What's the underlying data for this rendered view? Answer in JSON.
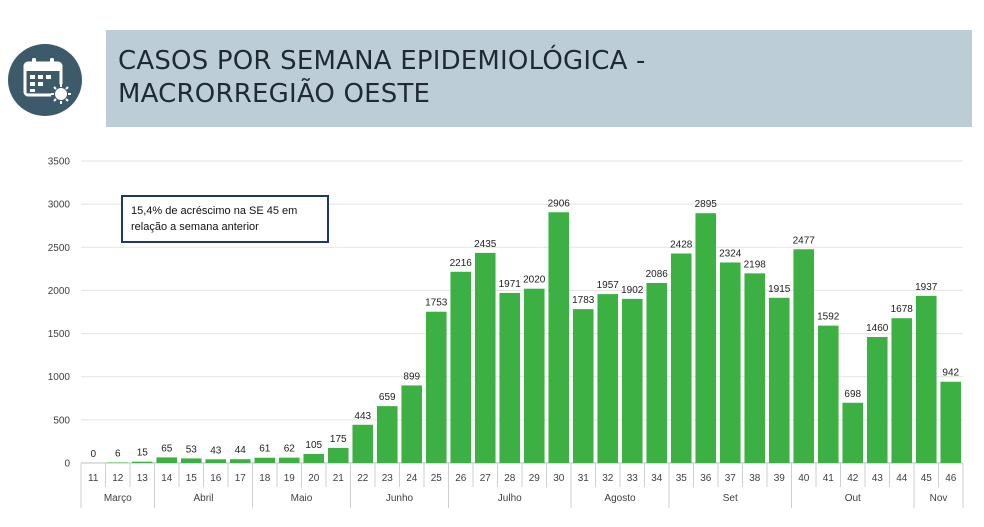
{
  "header": {
    "title": "CASOS POR SEMANA EPIDEMIOLÓGICA -\nMACRORREGIÃO OESTE",
    "icon": "calendar-virus-icon",
    "icon_bg": "#3d5a6b",
    "bg": "#bccdd7"
  },
  "annotation": {
    "text": "15,4% de acréscimo na SE 45 em relação a semana anterior"
  },
  "chart_data": {
    "type": "bar",
    "title": "",
    "xlabel": "",
    "ylabel": "",
    "ylim": [
      0,
      3500
    ],
    "yticks": [
      0,
      500,
      1000,
      1500,
      2000,
      2500,
      3000,
      3500
    ],
    "grid": true,
    "bar_color": "#3cb043",
    "categories": [
      "11",
      "12",
      "13",
      "14",
      "15",
      "16",
      "17",
      "18",
      "19",
      "20",
      "21",
      "22",
      "23",
      "24",
      "25",
      "26",
      "27",
      "28",
      "29",
      "30",
      "31",
      "32",
      "33",
      "34",
      "35",
      "36",
      "37",
      "38",
      "39",
      "40",
      "41",
      "42",
      "43",
      "44",
      "45",
      "46"
    ],
    "values": [
      0,
      6,
      15,
      65,
      53,
      43,
      44,
      61,
      62,
      105,
      175,
      443,
      659,
      899,
      1753,
      2216,
      2435,
      1971,
      2020,
      2906,
      1783,
      1957,
      1902,
      2086,
      2428,
      2895,
      2324,
      2198,
      1915,
      2477,
      1592,
      698,
      1460,
      1678,
      1937,
      942
    ],
    "months": [
      {
        "label": "Março",
        "start": 0,
        "end": 2
      },
      {
        "label": "Abril",
        "start": 3,
        "end": 6
      },
      {
        "label": "Maio",
        "start": 7,
        "end": 10
      },
      {
        "label": "Junho",
        "start": 11,
        "end": 14
      },
      {
        "label": "Julho",
        "start": 15,
        "end": 19
      },
      {
        "label": "Agosto",
        "start": 20,
        "end": 23
      },
      {
        "label": "Set",
        "start": 24,
        "end": 28
      },
      {
        "label": "Out",
        "start": 29,
        "end": 33
      },
      {
        "label": "Nov",
        "start": 34,
        "end": 35
      }
    ]
  }
}
